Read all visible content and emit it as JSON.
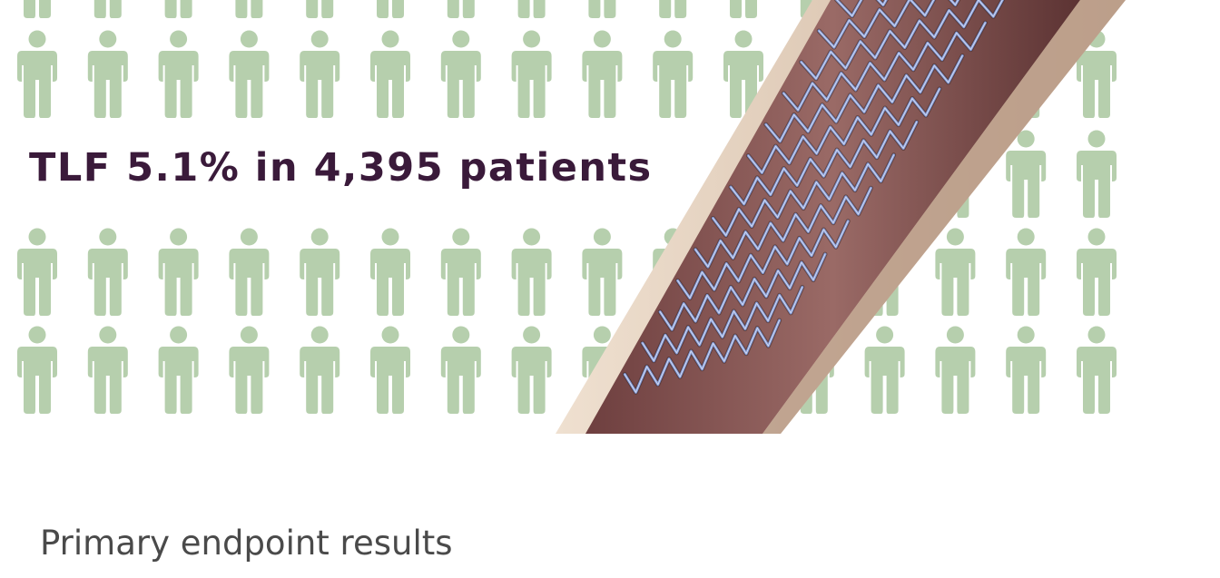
{
  "headline": {
    "text": "TLF 5.1% in 4,395 patients",
    "color": "#3a1a3a"
  },
  "footer": {
    "title": "Primary endpoint results"
  },
  "illustration": {
    "subject": "stent-in-vessel-icon",
    "person_icon": "person-icon",
    "person_color": "#b6cfad",
    "vessel_color": "#8a5a5a",
    "wall_color": "#e6d4c2",
    "strut_color": "#7f97d6"
  }
}
